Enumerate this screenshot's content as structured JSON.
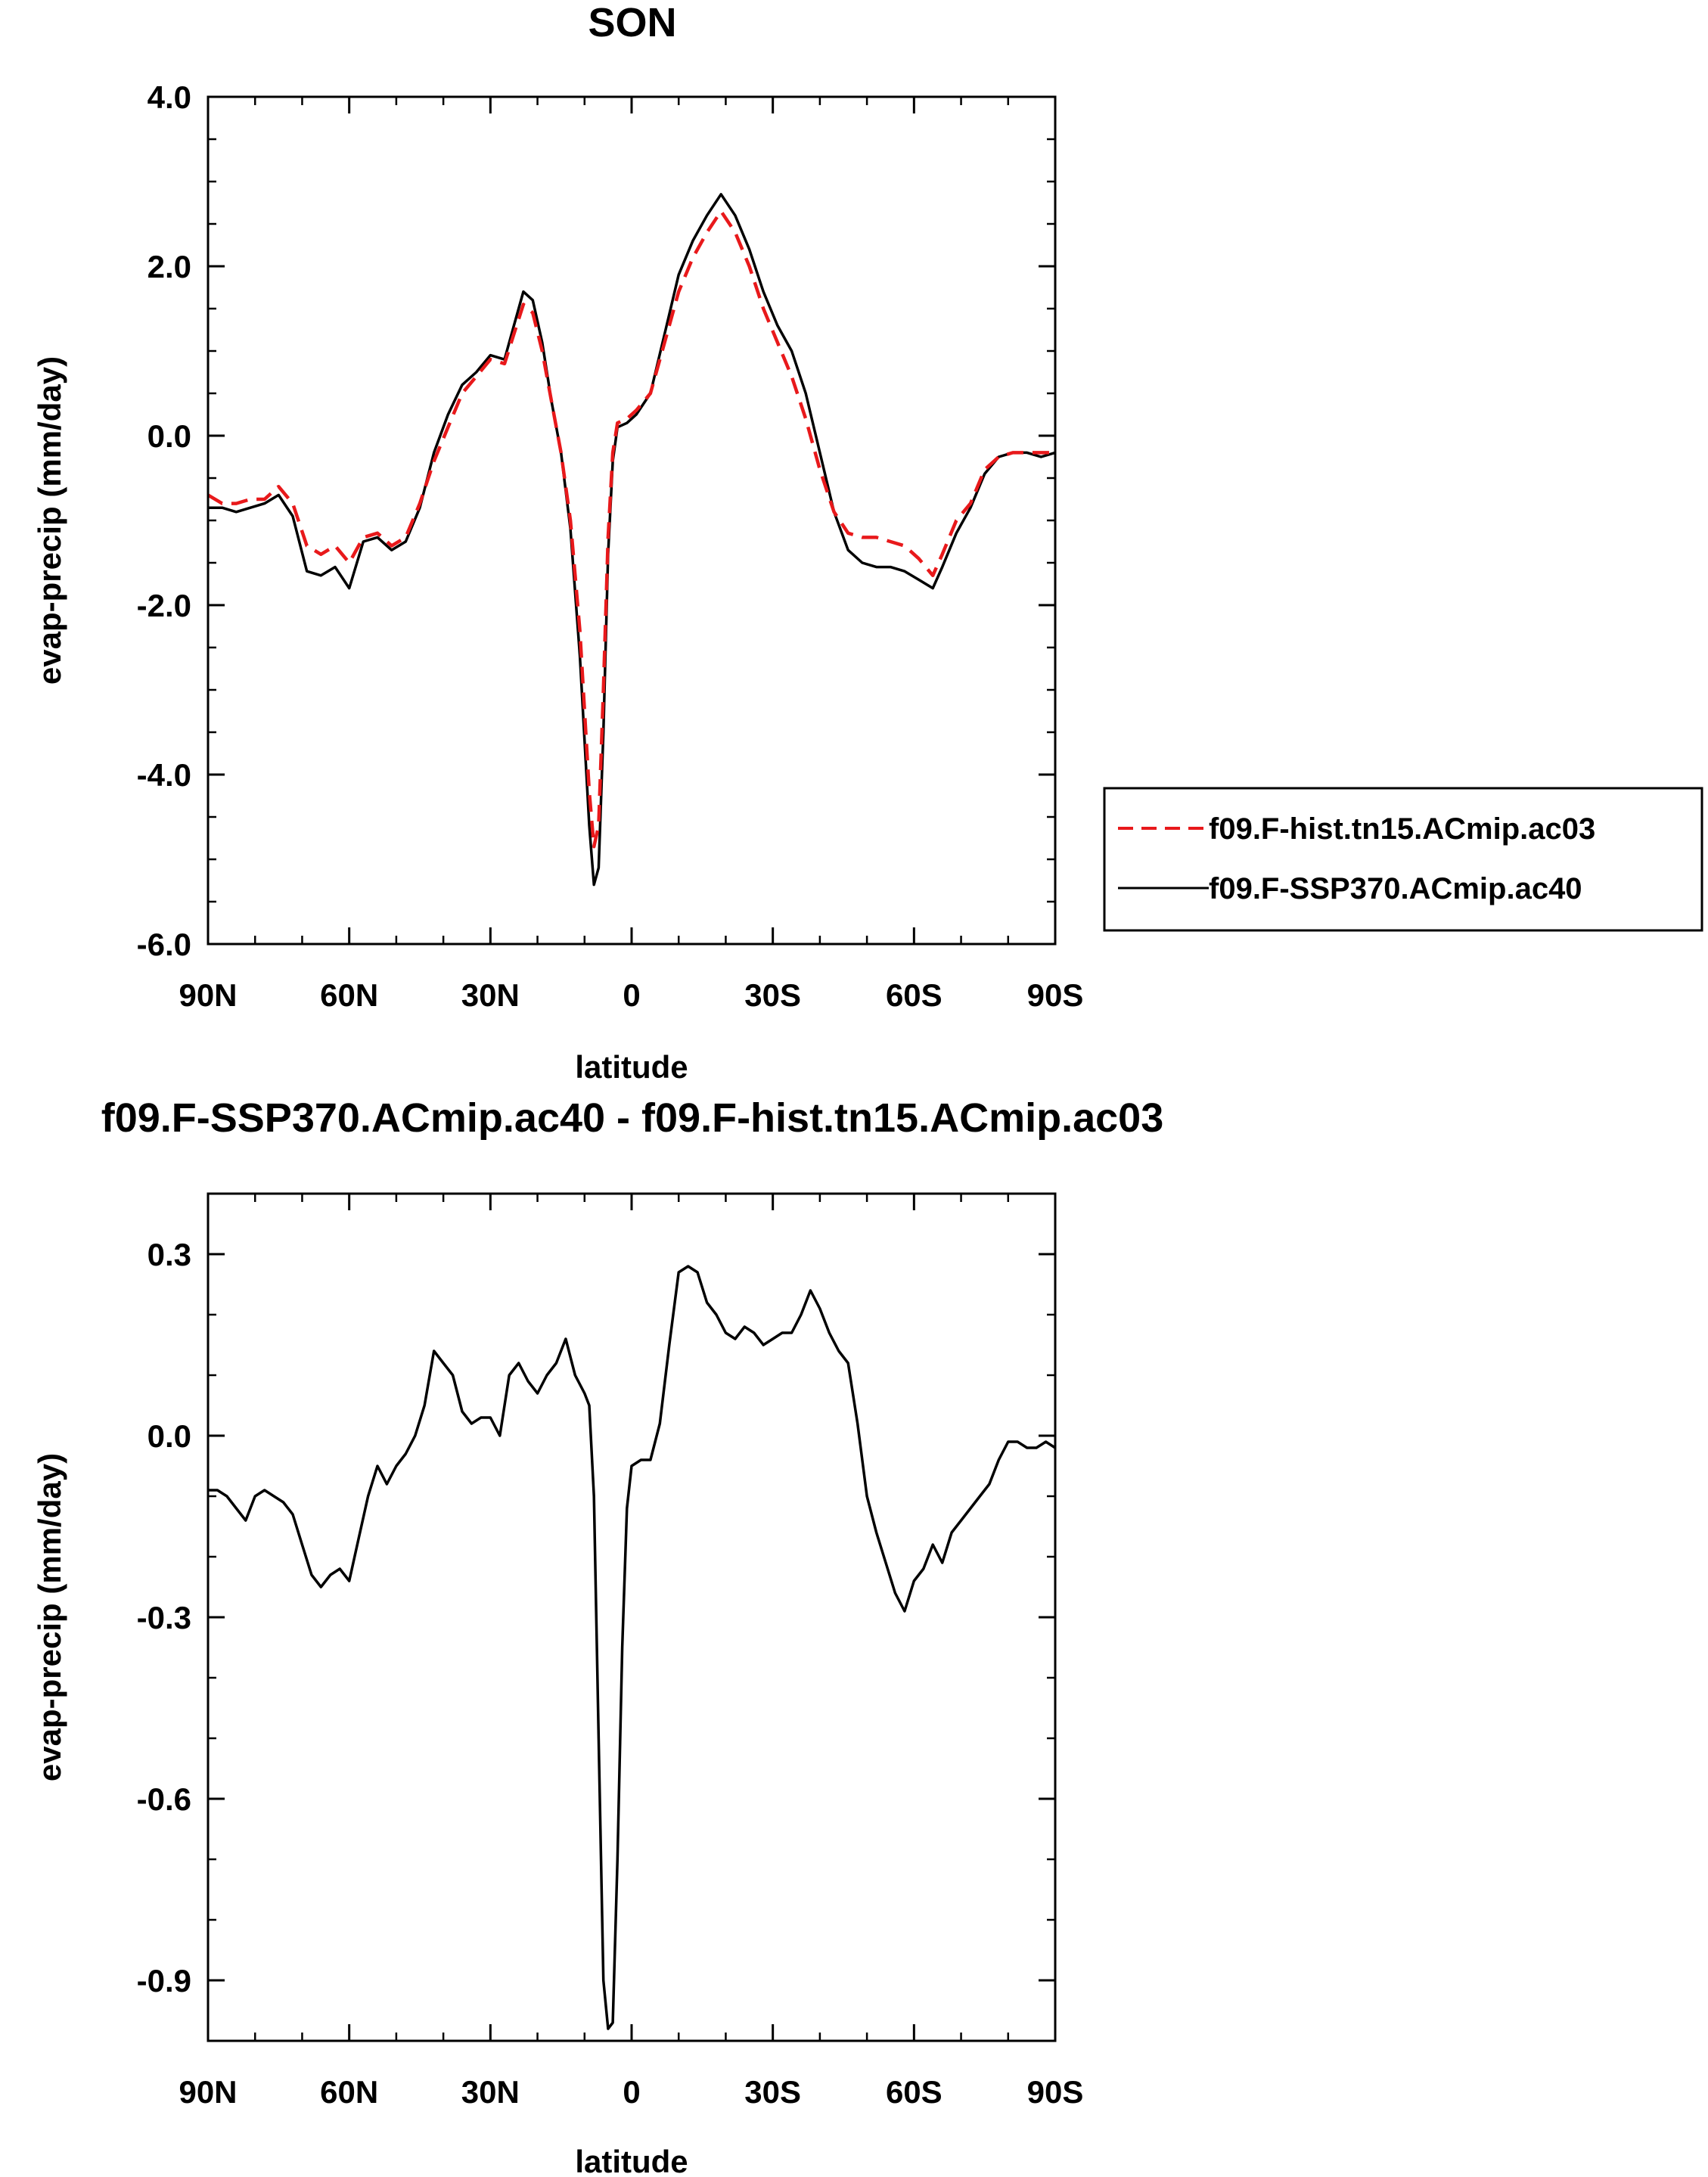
{
  "chart_data": [
    {
      "type": "line",
      "title": "SON",
      "xlabel": "latitude",
      "ylabel": "evap-precip (mm/day)",
      "xlim": [
        -90,
        90
      ],
      "ylim": [
        -6,
        4
      ],
      "x_direction": "north-to-south",
      "xtick_labels": [
        "90N",
        "60N",
        "30N",
        "0",
        "30S",
        "60S",
        "90S"
      ],
      "ytick_labels": [
        "4.0",
        "2.0",
        "0.0",
        "-2.0",
        "-4.0",
        "-6.0"
      ],
      "legend_position": "right",
      "series": [
        {
          "name": "f09.F-hist.tn15.ACmip.ac03",
          "color": "#e8191b",
          "style": "dashed",
          "x": [
            -90,
            -87,
            -84,
            -81,
            -78,
            -75,
            -72,
            -69,
            -66,
            -63,
            -60,
            -57,
            -54,
            -51,
            -48,
            -45,
            -42,
            -39,
            -36,
            -33,
            -30,
            -27,
            -25,
            -23,
            -21,
            -19,
            -17,
            -15,
            -13,
            -11,
            -9,
            -8,
            -7,
            -6,
            -5,
            -4,
            -3,
            -1,
            1,
            4,
            7,
            10,
            13,
            16,
            19,
            22,
            25,
            28,
            31,
            34,
            37,
            40,
            43,
            46,
            49,
            52,
            55,
            58,
            61,
            64,
            66,
            69,
            72,
            75,
            78,
            81,
            84,
            87,
            90
          ],
          "y": [
            -0.7,
            -0.8,
            -0.8,
            -0.75,
            -0.75,
            -0.6,
            -0.8,
            -1.3,
            -1.4,
            -1.3,
            -1.5,
            -1.2,
            -1.15,
            -1.3,
            -1.2,
            -0.8,
            -0.3,
            0.1,
            0.5,
            0.7,
            0.9,
            0.85,
            1.2,
            1.55,
            1.45,
            1.0,
            0.4,
            -0.2,
            -1.0,
            -2.3,
            -4.2,
            -4.85,
            -4.6,
            -3.0,
            -1.2,
            -0.2,
            0.15,
            0.2,
            0.3,
            0.5,
            1.1,
            1.7,
            2.1,
            2.4,
            2.65,
            2.4,
            2.0,
            1.5,
            1.1,
            0.7,
            0.2,
            -0.4,
            -0.9,
            -1.15,
            -1.2,
            -1.2,
            -1.25,
            -1.3,
            -1.45,
            -1.65,
            -1.4,
            -1.0,
            -0.8,
            -0.4,
            -0.25,
            -0.2,
            -0.2,
            -0.2,
            -0.2
          ]
        },
        {
          "name": "f09.F-SSP370.ACmip.ac40",
          "color": "#000000",
          "style": "solid",
          "x": [
            -90,
            -87,
            -84,
            -81,
            -78,
            -75,
            -72,
            -69,
            -66,
            -63,
            -60,
            -57,
            -54,
            -51,
            -48,
            -45,
            -42,
            -39,
            -36,
            -33,
            -30,
            -27,
            -25,
            -23,
            -21,
            -19,
            -17,
            -15,
            -13,
            -11,
            -9,
            -8,
            -7,
            -6,
            -5,
            -4,
            -3,
            -1,
            1,
            4,
            7,
            10,
            13,
            16,
            19,
            22,
            25,
            28,
            31,
            34,
            37,
            40,
            43,
            46,
            49,
            52,
            55,
            58,
            61,
            64,
            66,
            69,
            72,
            75,
            78,
            81,
            84,
            87,
            90
          ],
          "y": [
            -0.85,
            -0.85,
            -0.9,
            -0.85,
            -0.8,
            -0.7,
            -0.95,
            -1.6,
            -1.65,
            -1.55,
            -1.8,
            -1.25,
            -1.2,
            -1.35,
            -1.25,
            -0.85,
            -0.2,
            0.25,
            0.6,
            0.75,
            0.95,
            0.9,
            1.3,
            1.7,
            1.6,
            1.1,
            0.4,
            -0.2,
            -1.1,
            -2.6,
            -4.6,
            -5.3,
            -5.1,
            -3.5,
            -1.4,
            -0.3,
            0.1,
            0.15,
            0.25,
            0.5,
            1.2,
            1.9,
            2.3,
            2.6,
            2.85,
            2.6,
            2.2,
            1.7,
            1.3,
            1.0,
            0.5,
            -0.2,
            -0.9,
            -1.35,
            -1.5,
            -1.55,
            -1.55,
            -1.6,
            -1.7,
            -1.8,
            -1.55,
            -1.15,
            -0.85,
            -0.45,
            -0.25,
            -0.2,
            -0.2,
            -0.25,
            -0.2
          ]
        }
      ]
    },
    {
      "type": "line",
      "title": "f09.F-SSP370.ACmip.ac40 - f09.F-hist.tn15.ACmip.ac03",
      "xlabel": "latitude",
      "ylabel": "evap-precip (mm/day)",
      "xlim": [
        -90,
        90
      ],
      "ylim": [
        -1.0,
        0.4
      ],
      "x_direction": "north-to-south",
      "xtick_labels": [
        "90N",
        "60N",
        "30N",
        "0",
        "30S",
        "60S",
        "90S"
      ],
      "ytick_labels": [
        "0.3",
        "0.0",
        "-0.3",
        "-0.6",
        "-0.9"
      ],
      "series": [
        {
          "color": "#000000",
          "style": "solid",
          "x": [
            -90,
            -88,
            -86,
            -84,
            -82,
            -80,
            -78,
            -76,
            -74,
            -72,
            -70,
            -68,
            -66,
            -64,
            -62,
            -60,
            -58,
            -56,
            -54,
            -52,
            -50,
            -48,
            -46,
            -44,
            -42,
            -40,
            -38,
            -36,
            -34,
            -32,
            -30,
            -28,
            -26,
            -24,
            -22,
            -20,
            -18,
            -16,
            -14,
            -12,
            -10,
            -9,
            -8,
            -7,
            -6,
            -5,
            -4,
            -3,
            -2,
            -1,
            0,
            2,
            4,
            6,
            8,
            10,
            12,
            14,
            16,
            18,
            20,
            22,
            24,
            26,
            28,
            30,
            32,
            34,
            36,
            38,
            40,
            42,
            44,
            46,
            48,
            50,
            52,
            54,
            56,
            58,
            60,
            62,
            64,
            66,
            68,
            70,
            72,
            74,
            76,
            78,
            80,
            82,
            84,
            86,
            88,
            90
          ],
          "y": [
            -0.09,
            -0.09,
            -0.1,
            -0.12,
            -0.14,
            -0.1,
            -0.09,
            -0.1,
            -0.11,
            -0.13,
            -0.18,
            -0.23,
            -0.25,
            -0.23,
            -0.22,
            -0.24,
            -0.17,
            -0.1,
            -0.05,
            -0.08,
            -0.05,
            -0.03,
            0.0,
            0.05,
            0.14,
            0.12,
            0.1,
            0.04,
            0.02,
            0.03,
            0.03,
            0.0,
            0.1,
            0.12,
            0.09,
            0.07,
            0.1,
            0.12,
            0.16,
            0.1,
            0.07,
            0.05,
            -0.1,
            -0.5,
            -0.9,
            -0.98,
            -0.97,
            -0.7,
            -0.35,
            -0.12,
            -0.05,
            -0.04,
            -0.04,
            0.02,
            0.15,
            0.27,
            0.28,
            0.27,
            0.22,
            0.2,
            0.17,
            0.16,
            0.18,
            0.17,
            0.15,
            0.16,
            0.17,
            0.17,
            0.2,
            0.24,
            0.21,
            0.17,
            0.14,
            0.12,
            0.02,
            -0.1,
            -0.16,
            -0.21,
            -0.26,
            -0.29,
            -0.24,
            -0.22,
            -0.18,
            -0.21,
            -0.16,
            -0.14,
            -0.12,
            -0.1,
            -0.08,
            -0.04,
            -0.01,
            -0.01,
            -0.02,
            -0.02,
            -0.01,
            -0.02
          ]
        }
      ]
    }
  ]
}
